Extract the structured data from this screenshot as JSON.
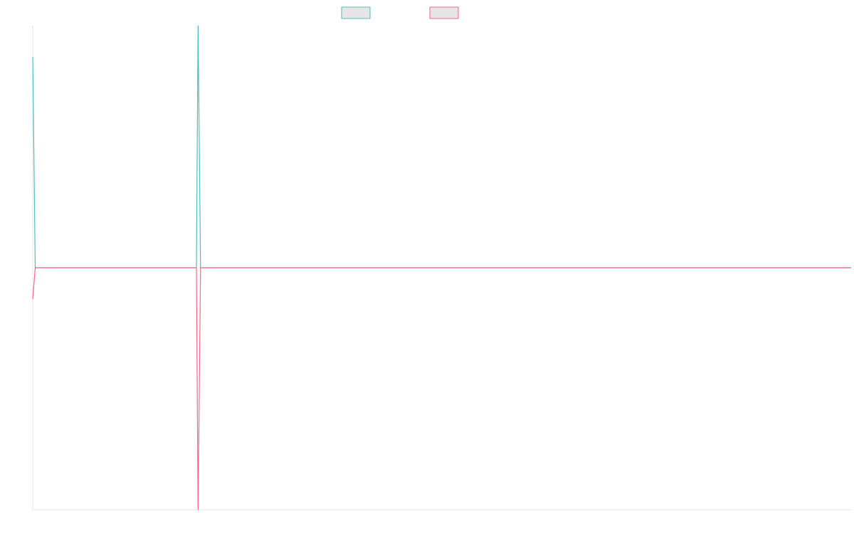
{
  "chart_data": {
    "type": "line",
    "title": "",
    "xlabel": "",
    "ylabel": "",
    "x_range": [
      0,
      1000
    ],
    "ylim": [
      -1,
      1
    ],
    "grid": false,
    "legend_placement": "top-center",
    "x": [
      0,
      3,
      200,
      202,
      205,
      1000
    ],
    "series": [
      {
        "color": "#4bc0c0",
        "fill": "#e6e6e6",
        "values": [
          0.87,
          0,
          0,
          1,
          0,
          0
        ]
      },
      {
        "color": "#ff6384",
        "fill": "#e6e6e6",
        "values": [
          -0.13,
          0,
          0,
          -1,
          0,
          0
        ]
      }
    ],
    "axis_color": "#e5e5e5"
  }
}
